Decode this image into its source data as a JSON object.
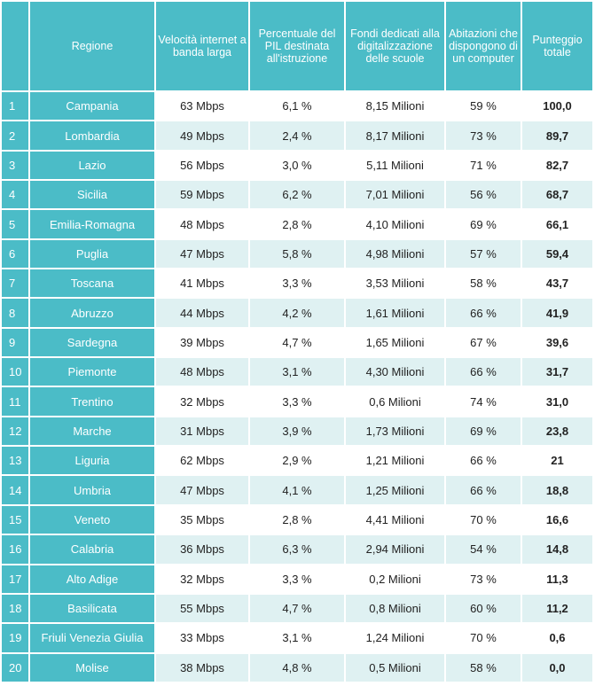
{
  "headers": [
    "",
    "Regione",
    "Velocità internet a banda larga",
    "Percentuale del PIL destinata all'istruzione",
    "Fondi dedicati alla digitalizzazione delle scuole",
    "Abitazioni che dispongono di un computer",
    "Punteggio totale"
  ],
  "rows": [
    [
      "1",
      "Campania",
      "63 Mbps",
      "6,1 %",
      "8,15 Milioni",
      "59 %",
      "100,0"
    ],
    [
      "2",
      "Lombardia",
      "49 Mbps",
      "2,4 %",
      "8,17 Milioni",
      "73 %",
      "89,7"
    ],
    [
      "3",
      "Lazio",
      "56 Mbps",
      "3,0 %",
      "5,11 Milioni",
      "71 %",
      "82,7"
    ],
    [
      "4",
      "Sicilia",
      "59 Mbps",
      "6,2 %",
      "7,01 Milioni",
      "56 %",
      "68,7"
    ],
    [
      "5",
      "Emilia-Romagna",
      "48 Mbps",
      "2,8 %",
      "4,10 Milioni",
      "69 %",
      "66,1"
    ],
    [
      "6",
      "Puglia",
      "47 Mbps",
      "5,8 %",
      "4,98 Milioni",
      "57 %",
      "59,4"
    ],
    [
      "7",
      "Toscana",
      "41 Mbps",
      "3,3 %",
      "3,53 Milioni",
      "58 %",
      "43,7"
    ],
    [
      "8",
      "Abruzzo",
      "44 Mbps",
      "4,2 %",
      "1,61 Milioni",
      "66 %",
      "41,9"
    ],
    [
      "9",
      "Sardegna",
      "39 Mbps",
      "4,7 %",
      "1,65 Milioni",
      "67 %",
      "39,6"
    ],
    [
      "10",
      "Piemonte",
      "48 Mbps",
      "3,1 %",
      "4,30 Milioni",
      "66 %",
      "31,7"
    ],
    [
      "11",
      "Trentino",
      "32 Mbps",
      "3,3 %",
      "0,6 Milioni",
      "74 %",
      "31,0"
    ],
    [
      "12",
      "Marche",
      "31 Mbps",
      "3,9 %",
      "1,73 Milioni",
      "69 %",
      "23,8"
    ],
    [
      "13",
      "Liguria",
      "62 Mbps",
      "2,9 %",
      "1,21 Milioni",
      "66 %",
      "21"
    ],
    [
      "14",
      "Umbria",
      "47 Mbps",
      "4,1 %",
      "1,25 Milioni",
      "66 %",
      "18,8"
    ],
    [
      "15",
      "Veneto",
      "35 Mbps",
      "2,8 %",
      "4,41 Milioni",
      "70 %",
      "16,6"
    ],
    [
      "16",
      "Calabria",
      "36 Mbps",
      "6,3 %",
      "2,94 Milioni",
      "54 %",
      "14,8"
    ],
    [
      "17",
      "Alto Adige",
      "32 Mbps",
      "3,3 %",
      "0,2 Milioni",
      "73 %",
      "11,3"
    ],
    [
      "18",
      "Basilicata",
      "55 Mbps",
      "4,7 %",
      "0,8 Milioni",
      "60 %",
      "11,2"
    ],
    [
      "19",
      "Friuli Venezia Giulia",
      "33 Mbps",
      "3,1 %",
      "1,24 Milioni",
      "70 %",
      "0,6"
    ],
    [
      "20",
      "Molise",
      "38 Mbps",
      "4,8 %",
      "0,5 Milioni",
      "58 %",
      "0,0"
    ]
  ]
}
